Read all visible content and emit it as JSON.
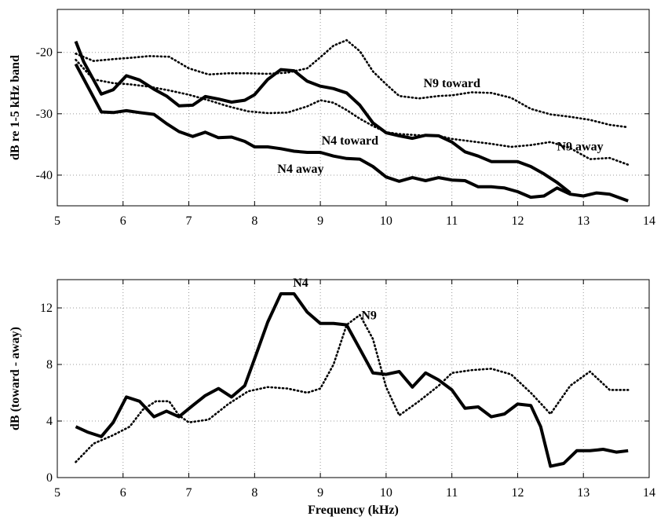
{
  "chart_data": [
    {
      "type": "line",
      "title": "",
      "xlabel": "",
      "ylabel": "dB re 1-5 kHz band",
      "xlim": [
        5,
        14
      ],
      "ylim": [
        -45,
        -13
      ],
      "xticks": [
        5,
        6,
        7,
        8,
        9,
        10,
        11,
        12,
        13,
        14
      ],
      "yticks": [
        -40,
        -30,
        -20
      ],
      "grid": true,
      "series": [
        {
          "name": "N4 toward",
          "style": "solid",
          "x": [
            5.28,
            5.4,
            5.67,
            5.85,
            6.05,
            6.25,
            6.47,
            6.66,
            6.85,
            7.06,
            7.25,
            7.45,
            7.65,
            7.85,
            8.0,
            8.2,
            8.4,
            8.6,
            8.8,
            9.0,
            9.2,
            9.4,
            9.6,
            9.8,
            10.0,
            10.2,
            10.4,
            10.6,
            10.8,
            11.0,
            11.2,
            11.4,
            11.6,
            11.8,
            12.0,
            12.2,
            12.4,
            12.6,
            12.8
          ],
          "y": [
            -18.2,
            -21.5,
            -26.8,
            -26.1,
            -23.8,
            -24.5,
            -26.0,
            -27.1,
            -28.7,
            -28.6,
            -27.2,
            -27.6,
            -28.1,
            -27.8,
            -26.9,
            -24.4,
            -22.8,
            -23.0,
            -24.7,
            -25.5,
            -25.9,
            -26.6,
            -28.6,
            -31.5,
            -33.1,
            -33.6,
            -34.0,
            -33.5,
            -33.6,
            -34.6,
            -36.2,
            -36.9,
            -37.8,
            -37.8,
            -37.8,
            -38.6,
            -39.8,
            -41.2,
            -42.9
          ]
        },
        {
          "name": "N4 away",
          "style": "solid",
          "x": [
            5.28,
            5.67,
            5.85,
            6.05,
            6.25,
            6.47,
            6.66,
            6.85,
            7.06,
            7.25,
            7.45,
            7.65,
            7.85,
            8.0,
            8.2,
            8.4,
            8.6,
            8.8,
            9.0,
            9.2,
            9.4,
            9.6,
            9.8,
            10.0,
            10.2,
            10.4,
            10.6,
            10.8,
            11.0,
            11.2,
            11.4,
            11.6,
            11.8,
            12.0,
            12.2,
            12.4,
            12.6,
            12.8,
            13.0,
            13.2,
            13.4,
            13.68
          ],
          "y": [
            -21.9,
            -29.7,
            -29.8,
            -29.5,
            -29.8,
            -30.1,
            -31.6,
            -32.9,
            -33.7,
            -33.0,
            -33.9,
            -33.8,
            -34.5,
            -35.4,
            -35.4,
            -35.7,
            -36.1,
            -36.3,
            -36.3,
            -36.9,
            -37.3,
            -37.4,
            -38.6,
            -40.3,
            -41.0,
            -40.4,
            -40.9,
            -40.4,
            -40.8,
            -40.9,
            -41.9,
            -41.9,
            -42.1,
            -42.7,
            -43.6,
            -43.4,
            -42.1,
            -43.1,
            -43.4,
            -42.9,
            -43.1,
            -44.2
          ]
        },
        {
          "name": "N9 toward",
          "style": "dotted",
          "x": [
            5.28,
            5.55,
            5.85,
            6.1,
            6.4,
            6.7,
            7.0,
            7.3,
            7.6,
            7.9,
            8.2,
            8.5,
            8.8,
            9.0,
            9.2,
            9.4,
            9.6,
            9.8,
            10.0,
            10.2,
            10.5,
            10.8,
            11.0,
            11.3,
            11.6,
            11.9,
            12.2,
            12.5,
            12.8,
            13.1,
            13.4,
            13.68
          ],
          "y": [
            -20.2,
            -21.4,
            -21.1,
            -20.9,
            -20.6,
            -20.7,
            -22.6,
            -23.6,
            -23.4,
            -23.4,
            -23.5,
            -23.3,
            -22.6,
            -20.8,
            -18.9,
            -18.0,
            -19.8,
            -23.1,
            -25.2,
            -27.1,
            -27.5,
            -27.1,
            -27.0,
            -26.5,
            -26.6,
            -27.4,
            -29.2,
            -30.1,
            -30.5,
            -31.0,
            -31.8,
            -32.2
          ]
        },
        {
          "name": "N9 away",
          "style": "dotted",
          "x": [
            5.28,
            5.55,
            5.85,
            6.1,
            6.4,
            6.7,
            7.0,
            7.3,
            7.6,
            7.9,
            8.2,
            8.5,
            8.8,
            9.0,
            9.2,
            9.4,
            9.6,
            9.8,
            10.0,
            10.2,
            10.5,
            10.8,
            11.0,
            11.3,
            11.6,
            11.9,
            12.2,
            12.5,
            12.8,
            13.1,
            13.4,
            13.68
          ],
          "y": [
            -21.2,
            -24.4,
            -25.0,
            -25.2,
            -25.6,
            -26.2,
            -26.9,
            -27.8,
            -28.8,
            -29.6,
            -29.9,
            -29.8,
            -28.8,
            -27.8,
            -28.2,
            -29.4,
            -30.8,
            -32.0,
            -33.0,
            -33.3,
            -33.5,
            -33.6,
            -34.1,
            -34.5,
            -34.9,
            -35.4,
            -35.1,
            -34.6,
            -35.6,
            -37.4,
            -37.2,
            -38.3
          ]
        }
      ],
      "annotations": [
        {
          "text": "N9 toward",
          "x": 11.0,
          "y": -25.7
        },
        {
          "text": "N4 toward",
          "x": 9.45,
          "y": -35.0
        },
        {
          "text": "N9 away",
          "x": 12.95,
          "y": -36.0
        },
        {
          "text": "N4 away",
          "x": 8.7,
          "y": -39.6
        }
      ]
    },
    {
      "type": "line",
      "title": "",
      "xlabel": "Frequency (kHz)",
      "ylabel": "dB (toward - away)",
      "xlim": [
        5,
        14
      ],
      "ylim": [
        0,
        14
      ],
      "xticks": [
        5,
        6,
        7,
        8,
        9,
        10,
        11,
        12,
        13,
        14
      ],
      "yticks": [
        0,
        4,
        8,
        12
      ],
      "grid": true,
      "series": [
        {
          "name": "N4",
          "style": "solid",
          "x": [
            5.28,
            5.47,
            5.67,
            5.85,
            6.05,
            6.25,
            6.47,
            6.66,
            6.85,
            7.06,
            7.25,
            7.45,
            7.65,
            7.85,
            8.0,
            8.2,
            8.4,
            8.6,
            8.8,
            9.0,
            9.2,
            9.4,
            9.6,
            9.8,
            10.0,
            10.2,
            10.4,
            10.6,
            10.8,
            11.0,
            11.2,
            11.4,
            11.6,
            11.8,
            12.0,
            12.2,
            12.35,
            12.5,
            12.7,
            12.9,
            13.1,
            13.3,
            13.5,
            13.68
          ],
          "y": [
            3.6,
            3.2,
            2.9,
            3.9,
            5.7,
            5.4,
            4.3,
            4.7,
            4.3,
            5.1,
            5.8,
            6.3,
            5.7,
            6.5,
            8.4,
            11.0,
            13.0,
            13.0,
            11.7,
            10.9,
            10.9,
            10.8,
            9.1,
            7.4,
            7.3,
            7.5,
            6.4,
            7.4,
            6.9,
            6.2,
            4.9,
            5.0,
            4.3,
            4.5,
            5.2,
            5.1,
            3.6,
            0.8,
            1.0,
            1.9,
            1.9,
            2.0,
            1.8,
            1.9
          ]
        },
        {
          "name": "N9",
          "style": "dotted",
          "x": [
            5.28,
            5.55,
            5.85,
            6.1,
            6.3,
            6.5,
            6.7,
            6.85,
            7.0,
            7.3,
            7.6,
            7.9,
            8.2,
            8.5,
            8.8,
            9.0,
            9.2,
            9.4,
            9.6,
            9.8,
            10.0,
            10.2,
            10.5,
            10.8,
            11.0,
            11.3,
            11.6,
            11.9,
            12.2,
            12.5,
            12.8,
            13.1,
            13.4,
            13.68
          ],
          "y": [
            1.1,
            2.4,
            3.0,
            3.6,
            4.8,
            5.4,
            5.4,
            4.4,
            3.9,
            4.1,
            5.2,
            6.1,
            6.4,
            6.3,
            6.0,
            6.3,
            8.0,
            10.8,
            11.5,
            9.8,
            6.4,
            4.4,
            5.4,
            6.5,
            7.4,
            7.6,
            7.7,
            7.3,
            6.0,
            4.5,
            6.5,
            7.5,
            6.2,
            6.2
          ]
        }
      ],
      "annotations": [
        {
          "text": "N4",
          "x": 8.7,
          "y": 13.5
        },
        {
          "text": "N9",
          "x": 9.74,
          "y": 11.2
        }
      ]
    }
  ]
}
